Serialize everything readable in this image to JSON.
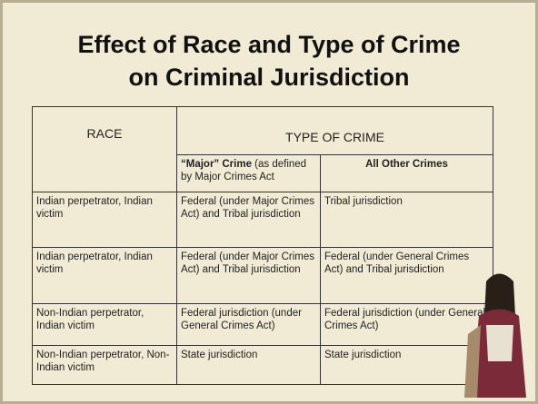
{
  "title": {
    "line1": "Effect of Race and Type of Crime",
    "line2": "on Criminal Jurisdiction"
  },
  "table": {
    "header": {
      "race": "RACE",
      "type": "TYPE  OF CRIME"
    },
    "subheader": {
      "major_bold": "“Major” Crime",
      "major_rest": "(as defined by Major Crimes Act",
      "other": "All Other Crimes"
    },
    "rows": [
      [
        "Indian perpetrator, Indian victim",
        "Federal (under Major Crimes Act) and Tribal jurisdiction",
        "Tribal jurisdiction"
      ],
      [
        "Indian perpetrator, Indian victim",
        "Federal (under Major Crimes Act) and Tribal jurisdiction",
        "Federal (under General Crimes Act) and Tribal jurisdiction"
      ],
      [
        "Non-Indian perpetrator, Indian victim",
        "Federal jurisdiction (under General Crimes Act)",
        "Federal jurisdiction (under General Crimes Act)"
      ],
      [
        "Non-Indian perpetrator, Non-Indian victim",
        "State jurisdiction",
        "State jurisdiction"
      ]
    ]
  }
}
